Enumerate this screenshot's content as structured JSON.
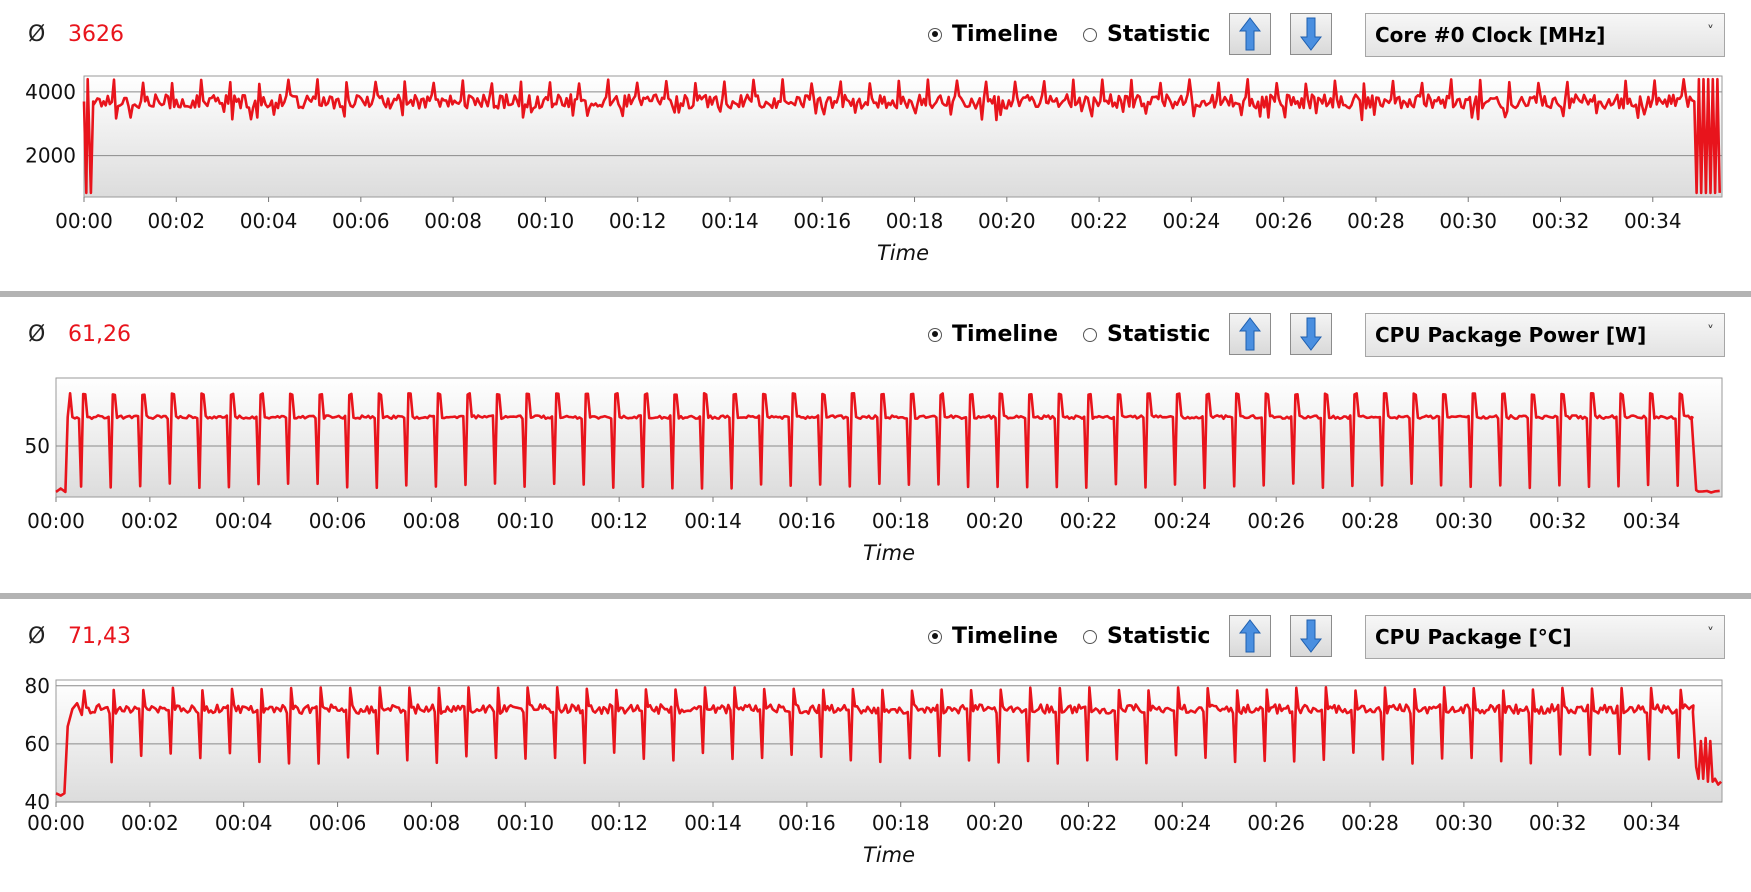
{
  "panels": [
    {
      "average_symbol": "Ø",
      "average_value": "3626",
      "view_options": {
        "timeline": "Timeline",
        "statistic": "Statistic",
        "selected": "timeline"
      },
      "sensor_select": "Core #0 Clock [MHz]"
    },
    {
      "average_symbol": "Ø",
      "average_value": "61,26",
      "view_options": {
        "timeline": "Timeline",
        "statistic": "Statistic",
        "selected": "timeline"
      },
      "sensor_select": "CPU Package Power [W]"
    },
    {
      "average_symbol": "Ø",
      "average_value": "71,43",
      "view_options": {
        "timeline": "Timeline",
        "statistic": "Statistic",
        "selected": "timeline"
      },
      "sensor_select": "CPU Package [°C]"
    }
  ],
  "colors": {
    "series": "#e8141c",
    "average_text": "#e8141c",
    "separator": "#b3b3b3"
  },
  "icons": [
    "arrow-up-icon",
    "arrow-down-icon",
    "chevron-down-icon"
  ],
  "chart_data": [
    {
      "type": "line",
      "xlabel": "Time",
      "ylabel": "",
      "xlim": [
        0,
        35.5
      ],
      "ylim": [
        700,
        4500
      ],
      "yticks": [
        2000,
        4000
      ],
      "xtick_labels": [
        "00:00",
        "00:02",
        "00:04",
        "00:06",
        "00:08",
        "00:10",
        "00:12",
        "00:14",
        "00:16",
        "00:18",
        "00:20",
        "00:22",
        "00:24",
        "00:26",
        "00:28",
        "00:30",
        "00:32",
        "00:34"
      ],
      "grid": true,
      "pattern": {
        "start": 0.05,
        "end": 34.9,
        "period": 0.63,
        "base": 3700,
        "peak": 4400,
        "dip": 830,
        "jitter": 220,
        "tail_low": 830,
        "tail_high": 4400
      }
    },
    {
      "type": "line",
      "xlabel": "Time",
      "ylabel": "",
      "xlim": [
        0,
        35.5
      ],
      "ylim": [
        35,
        70
      ],
      "yticks": [
        50
      ],
      "xtick_labels": [
        "00:00",
        "00:02",
        "00:04",
        "00:06",
        "00:08",
        "00:10",
        "00:12",
        "00:14",
        "00:16",
        "00:18",
        "00:20",
        "00:22",
        "00:24",
        "00:26",
        "00:28",
        "00:30",
        "00:32",
        "00:34"
      ],
      "grid": true,
      "pattern": {
        "start": 0.15,
        "end": 34.9,
        "period": 0.63,
        "base": 58.5,
        "peak": 65.5,
        "dip": 37.5,
        "jitter": 0.5,
        "idle": 36.5
      }
    },
    {
      "type": "line",
      "xlabel": "Time",
      "ylabel": "",
      "xlim": [
        0,
        35.5
      ],
      "ylim": [
        40,
        82
      ],
      "yticks": [
        40,
        60,
        80
      ],
      "xtick_labels": [
        "00:00",
        "00:02",
        "00:04",
        "00:06",
        "00:08",
        "00:10",
        "00:12",
        "00:14",
        "00:16",
        "00:18",
        "00:20",
        "00:22",
        "00:24",
        "00:26",
        "00:28",
        "00:30",
        "00:32",
        "00:34"
      ],
      "grid": true,
      "pattern": {
        "start": 0.2,
        "end": 34.9,
        "period": 0.63,
        "base": 72,
        "peak": 79.5,
        "dip": 53,
        "jitter": 1.6,
        "idle": 43,
        "tail": 47
      }
    }
  ]
}
